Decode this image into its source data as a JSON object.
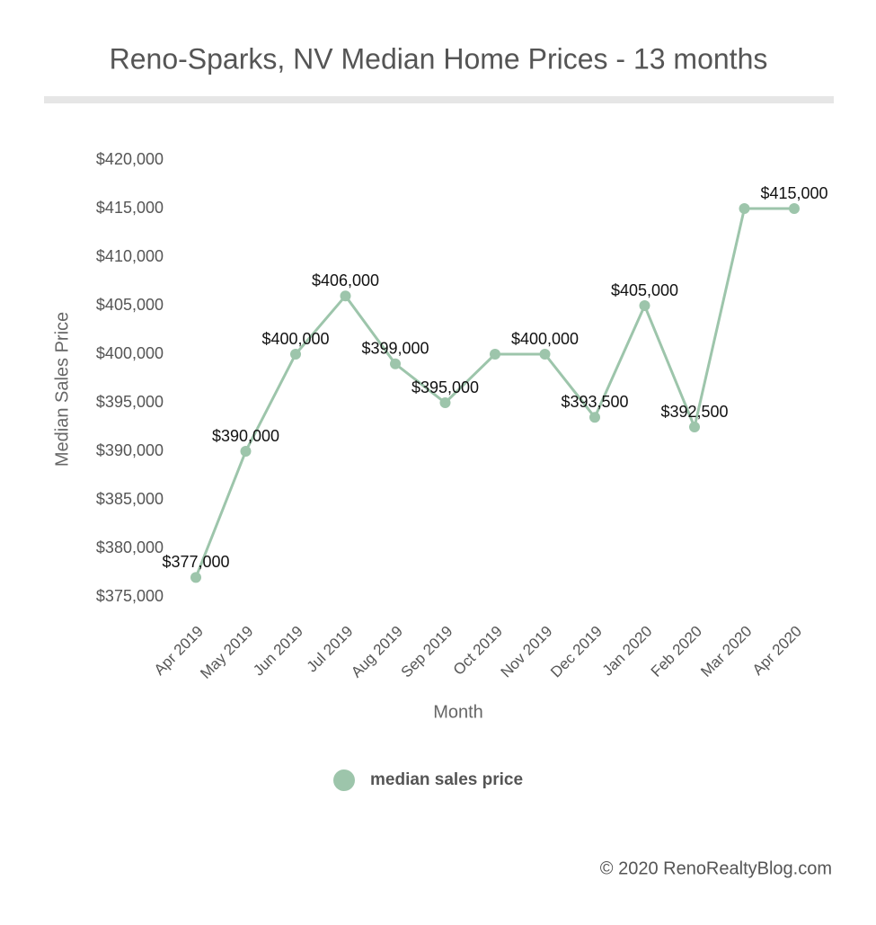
{
  "chart_data": {
    "type": "line",
    "title": "Reno-Sparks, NV Median Home Prices - 13 months",
    "x_label": "Month",
    "y_label": "Median Sales Price",
    "categories": [
      "Apr 2019",
      "May 2019",
      "Jun 2019",
      "Jul 2019",
      "Aug 2019",
      "Sep 2019",
      "Oct 2019",
      "Nov 2019",
      "Dec 2019",
      "Jan 2020",
      "Feb 2020",
      "Mar 2020",
      "Apr 2020"
    ],
    "series": [
      {
        "name": "median sales price",
        "color": "#9dc5ab",
        "values": [
          377000,
          390000,
          400000,
          406000,
          399000,
          395000,
          400000,
          400000,
          393500,
          405000,
          392500,
          415000,
          415000
        ],
        "value_labels": [
          "$377,000",
          "$390,000",
          "$400,000",
          "$406,000",
          "$399,000",
          "$395,000",
          null,
          "$400,000",
          "$393,500",
          "$405,000",
          "$392,500",
          null,
          "$415,000"
        ]
      }
    ],
    "ylim": [
      375000,
      420000
    ],
    "yticks": [
      {
        "value": 375000,
        "label": "$375,000"
      },
      {
        "value": 380000,
        "label": "$380,000"
      },
      {
        "value": 385000,
        "label": "$385,000"
      },
      {
        "value": 390000,
        "label": "$390,000"
      },
      {
        "value": 395000,
        "label": "$395,000"
      },
      {
        "value": 400000,
        "label": "$400,000"
      },
      {
        "value": 405000,
        "label": "$405,000"
      },
      {
        "value": 410000,
        "label": "$410,000"
      },
      {
        "value": 415000,
        "label": "$415,000"
      },
      {
        "value": 420000,
        "label": "$420,000"
      }
    ],
    "grid": false,
    "legend": "bottom",
    "footer": "© 2020 RenoRealtyBlog.com"
  }
}
